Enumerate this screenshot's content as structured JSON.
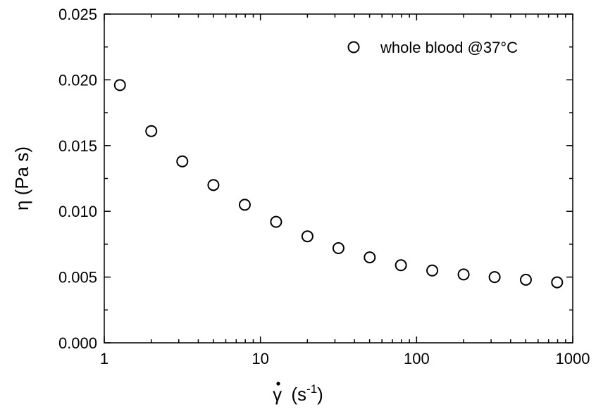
{
  "chart_data": {
    "type": "scatter",
    "xscale": "log",
    "xlim": [
      1,
      1000
    ],
    "ylim": [
      0,
      0.025
    ],
    "xticks": [
      {
        "value": 1,
        "label": "1"
      },
      {
        "value": 10,
        "label": "10"
      },
      {
        "value": 100,
        "label": "100"
      },
      {
        "value": 1000,
        "label": "1000"
      }
    ],
    "yticks": [
      {
        "value": 0.0,
        "label": "0.000"
      },
      {
        "value": 0.005,
        "label": "0.005"
      },
      {
        "value": 0.01,
        "label": "0.010"
      },
      {
        "value": 0.015,
        "label": "0.015"
      },
      {
        "value": 0.02,
        "label": "0.020"
      },
      {
        "value": 0.025,
        "label": "0.025"
      }
    ],
    "xlabel": {
      "symbol": "γ",
      "unit_open": "(s",
      "unit_exp": "-1",
      "unit_close": ")"
    },
    "ylabel": "η (Pa s)",
    "grid": false,
    "legend_position": "top-right",
    "marker": "open-circle",
    "color": "#000000",
    "series": [
      {
        "name": "whole blood @37°C",
        "x": [
          1.26,
          2.0,
          3.16,
          5.0,
          7.94,
          12.6,
          20.0,
          31.6,
          50.1,
          79.4,
          126,
          200,
          316,
          501,
          794
        ],
        "y": [
          0.0196,
          0.0161,
          0.0138,
          0.012,
          0.0105,
          0.0092,
          0.0081,
          0.0072,
          0.0065,
          0.0059,
          0.0055,
          0.0052,
          0.005,
          0.0048,
          0.0046
        ]
      }
    ]
  }
}
